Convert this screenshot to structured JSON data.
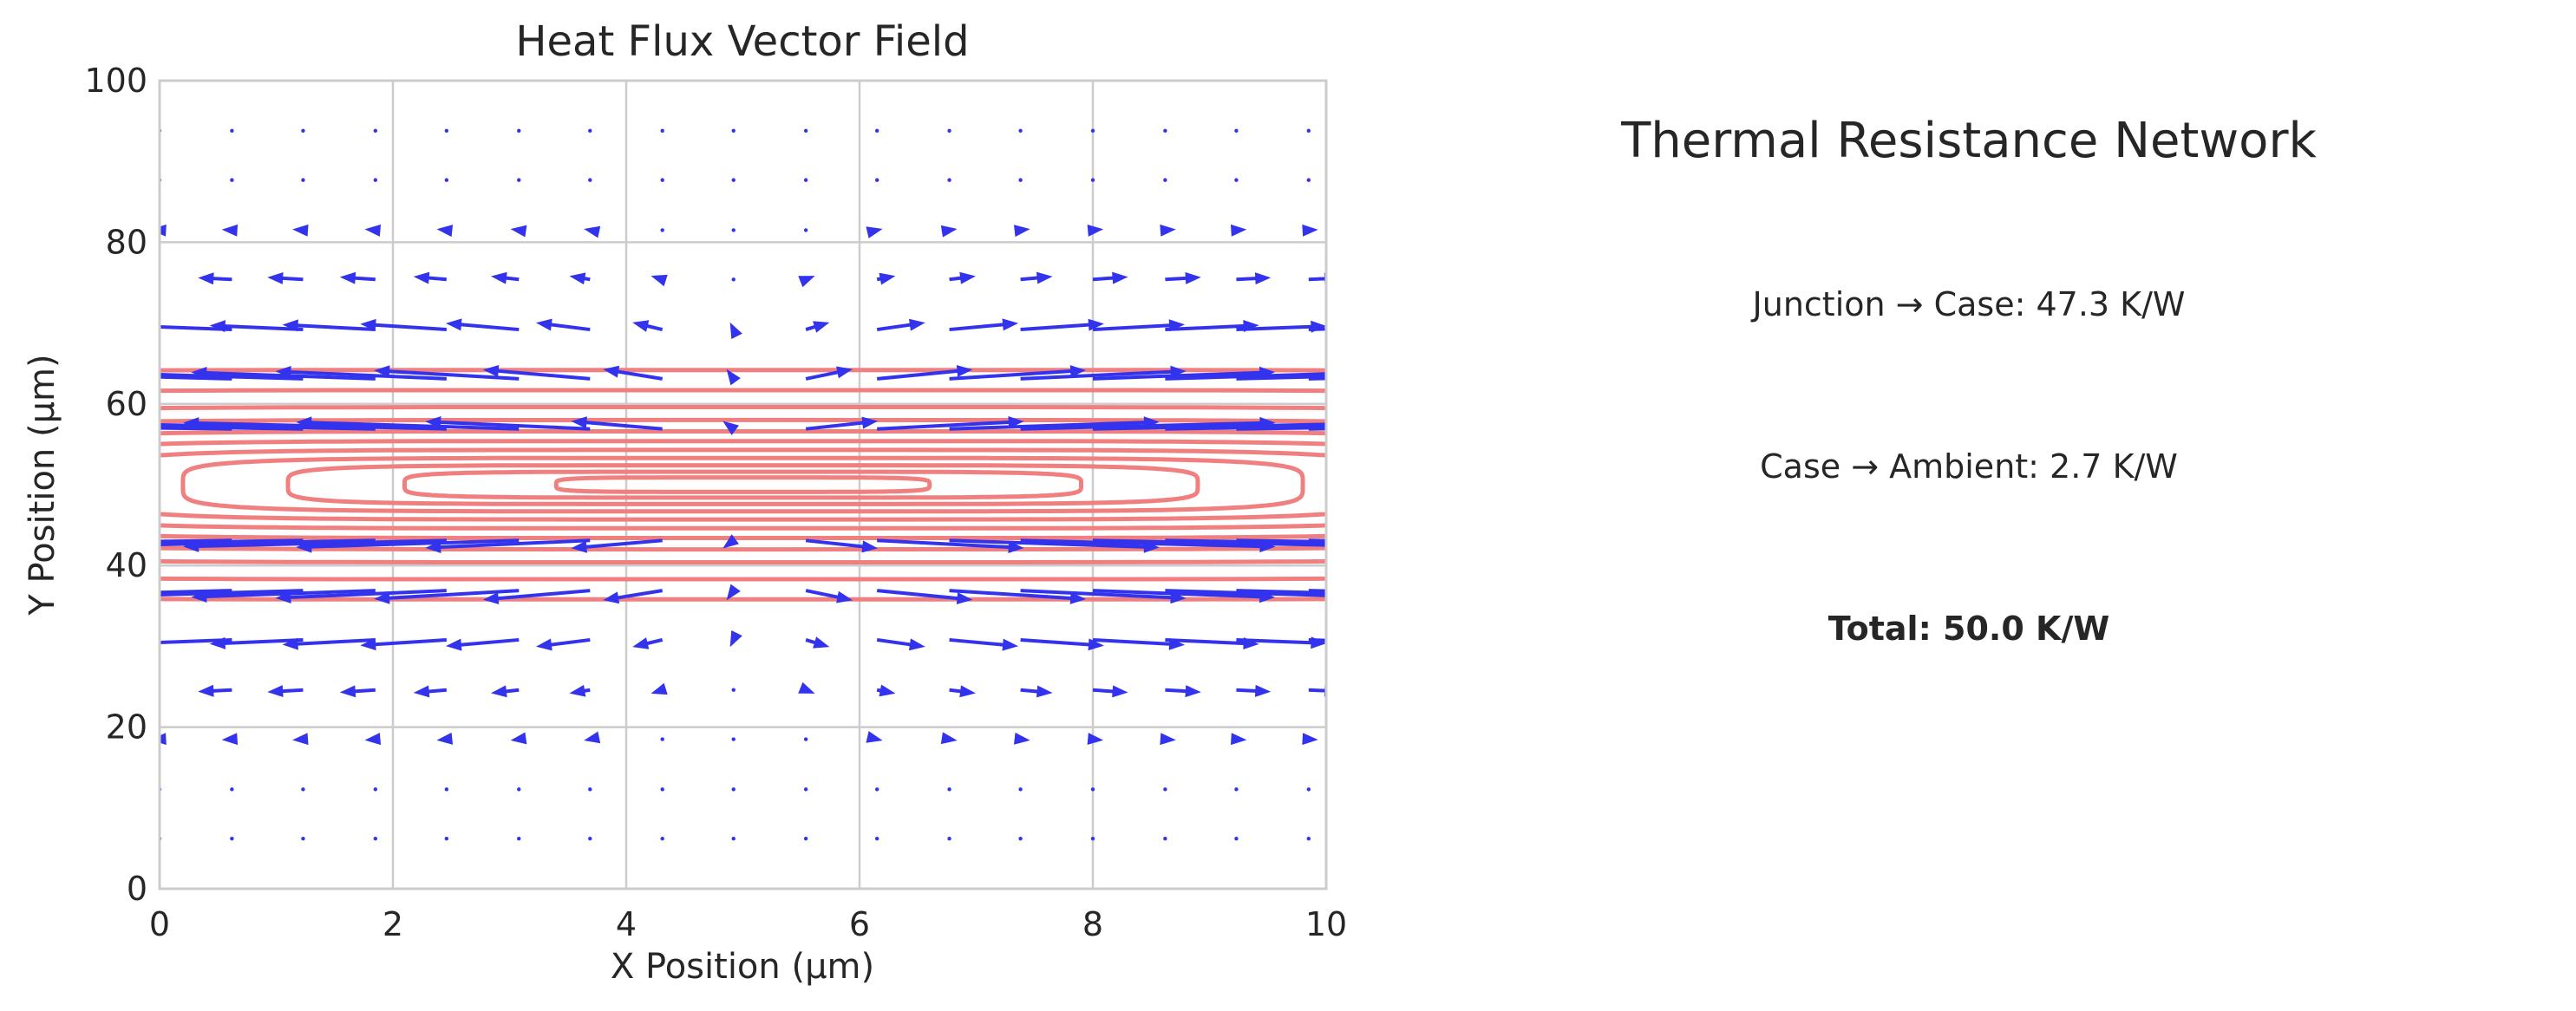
{
  "chart_data": [
    {
      "type": "quiver",
      "title": "Heat Flux Vector Field",
      "xlabel": "X Position (μm)",
      "ylabel": "Y Position (μm)",
      "xlim": [
        0,
        10
      ],
      "ylim": [
        0,
        100
      ],
      "xticks": [
        "0",
        "2",
        "4",
        "6",
        "8",
        "10"
      ],
      "yticks": [
        "0",
        "20",
        "40",
        "60",
        "80",
        "100"
      ],
      "grid": true,
      "vector_color": "#3333ee",
      "contour_color": "#f08080",
      "heat_source": {
        "x": 5,
        "y": 50
      },
      "grid_x": [
        0.0,
        0.62,
        1.23,
        1.85,
        2.46,
        3.08,
        3.69,
        4.31,
        4.92,
        5.54,
        6.15,
        6.77,
        7.38,
        8.0,
        8.62,
        9.23,
        9.85
      ],
      "grid_y": [
        6.2,
        12.3,
        18.5,
        24.6,
        30.8,
        36.9,
        43.1,
        56.9,
        63.1,
        69.2,
        75.4,
        81.5,
        87.7,
        93.8
      ],
      "contour_levels": [
        {
          "half_width": 1.6,
          "half_height": 0.9
        },
        {
          "half_width": 2.9,
          "half_height": 1.6
        },
        {
          "half_width": 3.9,
          "half_height": 2.4
        },
        {
          "half_width": 4.8,
          "half_height": 3.3
        },
        {
          "half_width": 5.6,
          "half_height": 4.3
        },
        {
          "half_width": 6.4,
          "half_height": 5.4
        },
        {
          "half_width": 7.2,
          "half_height": 6.6
        },
        {
          "half_width": 8.0,
          "half_height": 8.0
        },
        {
          "half_width": 8.9,
          "half_height": 9.6
        },
        {
          "half_width": 10.0,
          "half_height": 11.7
        },
        {
          "half_width": 11.5,
          "half_height": 14.2
        }
      ]
    },
    {
      "type": "table",
      "title": "Thermal Resistance Network",
      "rows": [
        {
          "label": "Junction → Case: 47.3 K/W"
        },
        {
          "label": "Case → Ambient: 2.7 K/W"
        }
      ],
      "total": "Total: 50.0 K/W"
    }
  ]
}
